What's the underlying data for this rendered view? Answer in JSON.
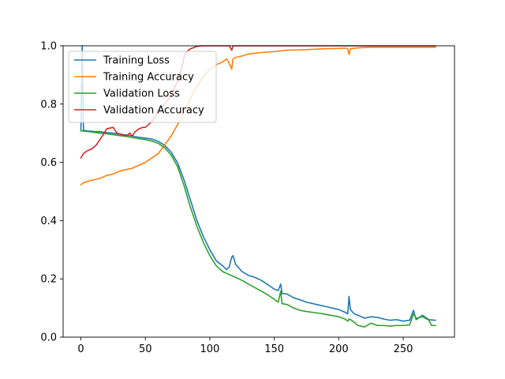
{
  "chart_data": {
    "type": "line",
    "title": "",
    "xlabel": "",
    "ylabel": "",
    "xlim": [
      -13.8,
      289.8
    ],
    "ylim": [
      0,
      1.0
    ],
    "xticks": [
      0,
      50,
      100,
      150,
      200,
      250
    ],
    "yticks": [
      0.0,
      0.2,
      0.4,
      0.6,
      0.8,
      1.0
    ],
    "xtick_labels": [
      "0",
      "50",
      "100",
      "150",
      "200",
      "250"
    ],
    "ytick_labels": [
      "0.0",
      "0.2",
      "0.4",
      "0.6",
      "0.8",
      "1.0"
    ],
    "grid": false,
    "legend_position": "upper-left",
    "series": [
      {
        "name": "Training Loss",
        "color": "#1f77b4",
        "points": [
          [
            0,
            0.71
          ],
          [
            1,
            1.0
          ],
          [
            2,
            0.71
          ],
          [
            5,
            0.708
          ],
          [
            10,
            0.706
          ],
          [
            15,
            0.705
          ],
          [
            20,
            0.702
          ],
          [
            25,
            0.7
          ],
          [
            30,
            0.697
          ],
          [
            35,
            0.694
          ],
          [
            40,
            0.69
          ],
          [
            45,
            0.686
          ],
          [
            50,
            0.683
          ],
          [
            55,
            0.68
          ],
          [
            60,
            0.672
          ],
          [
            65,
            0.658
          ],
          [
            70,
            0.635
          ],
          [
            75,
            0.598
          ],
          [
            80,
            0.54
          ],
          [
            85,
            0.47
          ],
          [
            90,
            0.4
          ],
          [
            95,
            0.345
          ],
          [
            100,
            0.3
          ],
          [
            105,
            0.262
          ],
          [
            110,
            0.245
          ],
          [
            113,
            0.232
          ],
          [
            115,
            0.24
          ],
          [
            117,
            0.275
          ],
          [
            118,
            0.28
          ],
          [
            120,
            0.25
          ],
          [
            125,
            0.225
          ],
          [
            130,
            0.212
          ],
          [
            135,
            0.205
          ],
          [
            140,
            0.195
          ],
          [
            145,
            0.18
          ],
          [
            150,
            0.165
          ],
          [
            153,
            0.16
          ],
          [
            155,
            0.182
          ],
          [
            156,
            0.15
          ],
          [
            160,
            0.148
          ],
          [
            165,
            0.135
          ],
          [
            170,
            0.128
          ],
          [
            175,
            0.12
          ],
          [
            180,
            0.115
          ],
          [
            185,
            0.11
          ],
          [
            190,
            0.105
          ],
          [
            195,
            0.1
          ],
          [
            200,
            0.095
          ],
          [
            205,
            0.085
          ],
          [
            207,
            0.08
          ],
          [
            208,
            0.14
          ],
          [
            209,
            0.095
          ],
          [
            212,
            0.08
          ],
          [
            215,
            0.075
          ],
          [
            220,
            0.065
          ],
          [
            225,
            0.07
          ],
          [
            230,
            0.068
          ],
          [
            235,
            0.062
          ],
          [
            240,
            0.058
          ],
          [
            245,
            0.06
          ],
          [
            250,
            0.055
          ],
          [
            255,
            0.058
          ],
          [
            258,
            0.092
          ],
          [
            260,
            0.06
          ],
          [
            265,
            0.075
          ],
          [
            270,
            0.06
          ],
          [
            275,
            0.058
          ]
        ]
      },
      {
        "name": "Training Accuracy",
        "color": "#ff7f0e",
        "points": [
          [
            0,
            0.523
          ],
          [
            2,
            0.53
          ],
          [
            5,
            0.535
          ],
          [
            10,
            0.54
          ],
          [
            15,
            0.545
          ],
          [
            20,
            0.555
          ],
          [
            25,
            0.56
          ],
          [
            30,
            0.57
          ],
          [
            35,
            0.575
          ],
          [
            40,
            0.58
          ],
          [
            45,
            0.59
          ],
          [
            50,
            0.6
          ],
          [
            55,
            0.615
          ],
          [
            60,
            0.63
          ],
          [
            65,
            0.66
          ],
          [
            70,
            0.69
          ],
          [
            75,
            0.73
          ],
          [
            80,
            0.775
          ],
          [
            85,
            0.82
          ],
          [
            90,
            0.86
          ],
          [
            95,
            0.895
          ],
          [
            100,
            0.92
          ],
          [
            105,
            0.935
          ],
          [
            110,
            0.945
          ],
          [
            113,
            0.955
          ],
          [
            115,
            0.94
          ],
          [
            117,
            0.92
          ],
          [
            118,
            0.955
          ],
          [
            120,
            0.96
          ],
          [
            125,
            0.965
          ],
          [
            130,
            0.972
          ],
          [
            140,
            0.977
          ],
          [
            150,
            0.98
          ],
          [
            160,
            0.985
          ],
          [
            170,
            0.986
          ],
          [
            180,
            0.988
          ],
          [
            190,
            0.99
          ],
          [
            200,
            0.991
          ],
          [
            205,
            0.992
          ],
          [
            207,
            0.99
          ],
          [
            208,
            0.97
          ],
          [
            209,
            0.99
          ],
          [
            215,
            0.993
          ],
          [
            225,
            0.995
          ],
          [
            240,
            0.995
          ],
          [
            255,
            0.995
          ],
          [
            265,
            0.995
          ],
          [
            275,
            0.995
          ]
        ]
      },
      {
        "name": "Validation Loss",
        "color": "#2ca02c",
        "points": [
          [
            0,
            0.708
          ],
          [
            5,
            0.706
          ],
          [
            10,
            0.703
          ],
          [
            15,
            0.7
          ],
          [
            20,
            0.698
          ],
          [
            25,
            0.695
          ],
          [
            30,
            0.692
          ],
          [
            35,
            0.689
          ],
          [
            40,
            0.685
          ],
          [
            45,
            0.681
          ],
          [
            50,
            0.678
          ],
          [
            55,
            0.673
          ],
          [
            60,
            0.665
          ],
          [
            65,
            0.65
          ],
          [
            70,
            0.625
          ],
          [
            75,
            0.585
          ],
          [
            80,
            0.52
          ],
          [
            85,
            0.445
          ],
          [
            90,
            0.38
          ],
          [
            95,
            0.325
          ],
          [
            100,
            0.28
          ],
          [
            105,
            0.245
          ],
          [
            110,
            0.225
          ],
          [
            115,
            0.215
          ],
          [
            120,
            0.205
          ],
          [
            125,
            0.195
          ],
          [
            130,
            0.182
          ],
          [
            135,
            0.17
          ],
          [
            140,
            0.158
          ],
          [
            145,
            0.145
          ],
          [
            150,
            0.13
          ],
          [
            153,
            0.12
          ],
          [
            155,
            0.158
          ],
          [
            156,
            0.115
          ],
          [
            160,
            0.112
          ],
          [
            165,
            0.1
          ],
          [
            170,
            0.092
          ],
          [
            175,
            0.088
          ],
          [
            180,
            0.085
          ],
          [
            185,
            0.082
          ],
          [
            190,
            0.078
          ],
          [
            195,
            0.074
          ],
          [
            200,
            0.07
          ],
          [
            205,
            0.062
          ],
          [
            207,
            0.055
          ],
          [
            208,
            0.062
          ],
          [
            210,
            0.058
          ],
          [
            215,
            0.04
          ],
          [
            220,
            0.035
          ],
          [
            225,
            0.048
          ],
          [
            230,
            0.04
          ],
          [
            235,
            0.04
          ],
          [
            240,
            0.038
          ],
          [
            245,
            0.04
          ],
          [
            250,
            0.04
          ],
          [
            255,
            0.042
          ],
          [
            258,
            0.08
          ],
          [
            260,
            0.065
          ],
          [
            265,
            0.07
          ],
          [
            270,
            0.058
          ],
          [
            272,
            0.04
          ],
          [
            275,
            0.04
          ]
        ]
      },
      {
        "name": "Validation Accuracy",
        "color": "#d62728",
        "points": [
          [
            0,
            0.615
          ],
          [
            2,
            0.63
          ],
          [
            5,
            0.64
          ],
          [
            8,
            0.645
          ],
          [
            12,
            0.66
          ],
          [
            15,
            0.68
          ],
          [
            18,
            0.7
          ],
          [
            20,
            0.715
          ],
          [
            25,
            0.72
          ],
          [
            28,
            0.7
          ],
          [
            32,
            0.695
          ],
          [
            35,
            0.69
          ],
          [
            38,
            0.7
          ],
          [
            40,
            0.69
          ],
          [
            42,
            0.705
          ],
          [
            45,
            0.715
          ],
          [
            48,
            0.72
          ],
          [
            50,
            0.72
          ],
          [
            55,
            0.74
          ],
          [
            58,
            0.76
          ],
          [
            60,
            0.78
          ],
          [
            65,
            0.8
          ],
          [
            70,
            0.83
          ],
          [
            75,
            0.88
          ],
          [
            78,
            0.92
          ],
          [
            80,
            0.96
          ],
          [
            82,
            0.98
          ],
          [
            85,
            0.99
          ],
          [
            90,
            0.998
          ],
          [
            95,
            1.0
          ],
          [
            100,
            1.0
          ],
          [
            110,
            1.0
          ],
          [
            115,
            1.0
          ],
          [
            117,
            0.985
          ],
          [
            118,
            1.0
          ],
          [
            125,
            1.0
          ],
          [
            150,
            1.0
          ],
          [
            175,
            1.0
          ],
          [
            200,
            1.0
          ],
          [
            225,
            1.0
          ],
          [
            250,
            1.0
          ],
          [
            275,
            1.0
          ]
        ]
      }
    ]
  }
}
